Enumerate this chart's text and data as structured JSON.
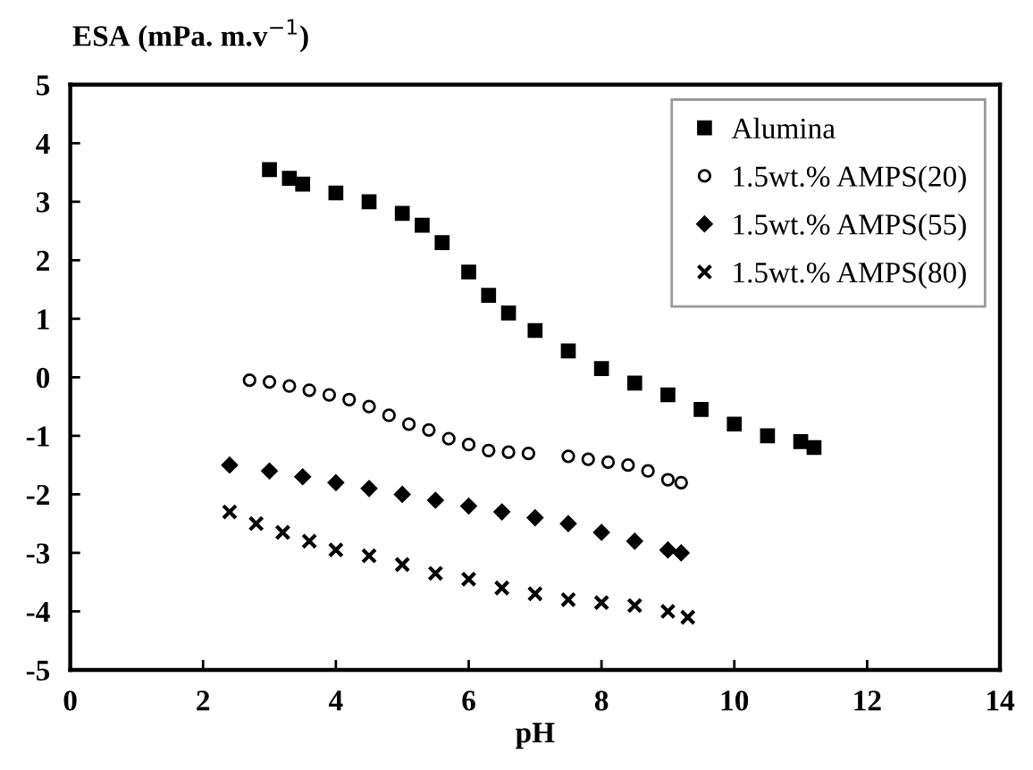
{
  "chart_data": {
    "type": "scatter",
    "xlabel": "pH",
    "ylabel": "ESA (mPa. m.v$^{−1}$)",
    "xlim": [
      0,
      14
    ],
    "ylim": [
      -5,
      5
    ],
    "xticks": [
      0,
      2,
      4,
      6,
      8,
      10,
      12,
      14
    ],
    "yticks": [
      -5,
      -4,
      -3,
      -2,
      -1,
      0,
      1,
      2,
      3,
      4,
      5
    ],
    "grid": false,
    "legend": "top right",
    "series": [
      {
        "name": "Alumina",
        "color": "#000000",
        "marker": "square",
        "x": [
          3.0,
          3.3,
          3.5,
          4.0,
          4.5,
          5.0,
          5.3,
          5.6,
          6.0,
          6.3,
          6.6,
          7.0,
          7.5,
          8.0,
          8.5,
          9.0,
          9.5,
          10.0,
          10.5,
          11.0,
          11.2
        ],
        "values": [
          3.55,
          3.4,
          3.3,
          3.15,
          3.0,
          2.8,
          2.6,
          2.3,
          1.8,
          1.4,
          1.1,
          0.8,
          0.45,
          0.15,
          -0.1,
          -0.3,
          -0.55,
          -0.8,
          -1.0,
          -1.1,
          -1.2
        ]
      },
      {
        "name": "1.5wt.% AMPS(20)",
        "color": "#000000",
        "marker": "circle",
        "x": [
          2.7,
          3.0,
          3.3,
          3.6,
          3.9,
          4.2,
          4.5,
          4.8,
          5.1,
          5.4,
          5.7,
          6.0,
          6.3,
          6.6,
          6.9,
          7.5,
          7.8,
          8.1,
          8.4,
          8.7,
          9.0,
          9.2
        ],
        "values": [
          -0.05,
          -0.08,
          -0.15,
          -0.22,
          -0.3,
          -0.38,
          -0.5,
          -0.65,
          -0.8,
          -0.9,
          -1.05,
          -1.15,
          -1.25,
          -1.28,
          -1.3,
          -1.35,
          -1.4,
          -1.45,
          -1.5,
          -1.6,
          -1.75,
          -1.8
        ]
      },
      {
        "name": "1.5wt.% AMPS(55)",
        "color": "#000000",
        "marker": "diamond",
        "x": [
          2.4,
          3.0,
          3.5,
          4.0,
          4.5,
          5.0,
          5.5,
          6.0,
          6.5,
          7.0,
          7.5,
          8.0,
          8.5,
          9.0,
          9.2
        ],
        "values": [
          -1.5,
          -1.6,
          -1.7,
          -1.8,
          -1.9,
          -2.0,
          -2.1,
          -2.2,
          -2.3,
          -2.4,
          -2.5,
          -2.65,
          -2.8,
          -2.95,
          -3.0
        ]
      },
      {
        "name": "1.5wt.% AMPS(80)",
        "color": "#000000",
        "marker": "cross",
        "x": [
          2.4,
          2.8,
          3.2,
          3.6,
          4.0,
          4.5,
          5.0,
          5.5,
          6.0,
          6.5,
          7.0,
          7.5,
          8.0,
          8.5,
          9.0,
          9.3
        ],
        "values": [
          -2.3,
          -2.5,
          -2.65,
          -2.8,
          -2.95,
          -3.05,
          -3.2,
          -3.35,
          -3.45,
          -3.6,
          -3.7,
          -3.8,
          -3.85,
          -3.9,
          -4.0,
          -4.1
        ]
      }
    ]
  }
}
